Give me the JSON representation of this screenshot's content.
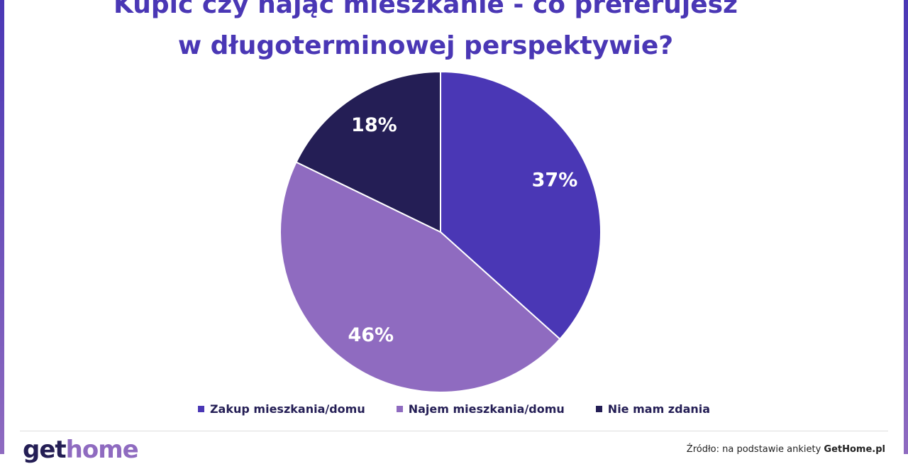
{
  "chart_data": {
    "type": "pie",
    "title": "Kupić czy nająć mieszkanie - co preferujesz w długoterminowej perspektywie?",
    "categories": [
      "Zakup mieszkania/domu",
      "Najem mieszkania/domu",
      "Nie mam zdania"
    ],
    "values": [
      37,
      46,
      18
    ],
    "value_labels": [
      "37%",
      "46%",
      "18%"
    ],
    "colors": [
      "#4a37b5",
      "#8f6bc0",
      "#241e55"
    ],
    "legend": "bottom"
  },
  "footer": {
    "logo_part1": "get",
    "logo_part2": "home",
    "source": "Źródło: na podstawie ankiety",
    "source_site": "GetHome.pl"
  }
}
